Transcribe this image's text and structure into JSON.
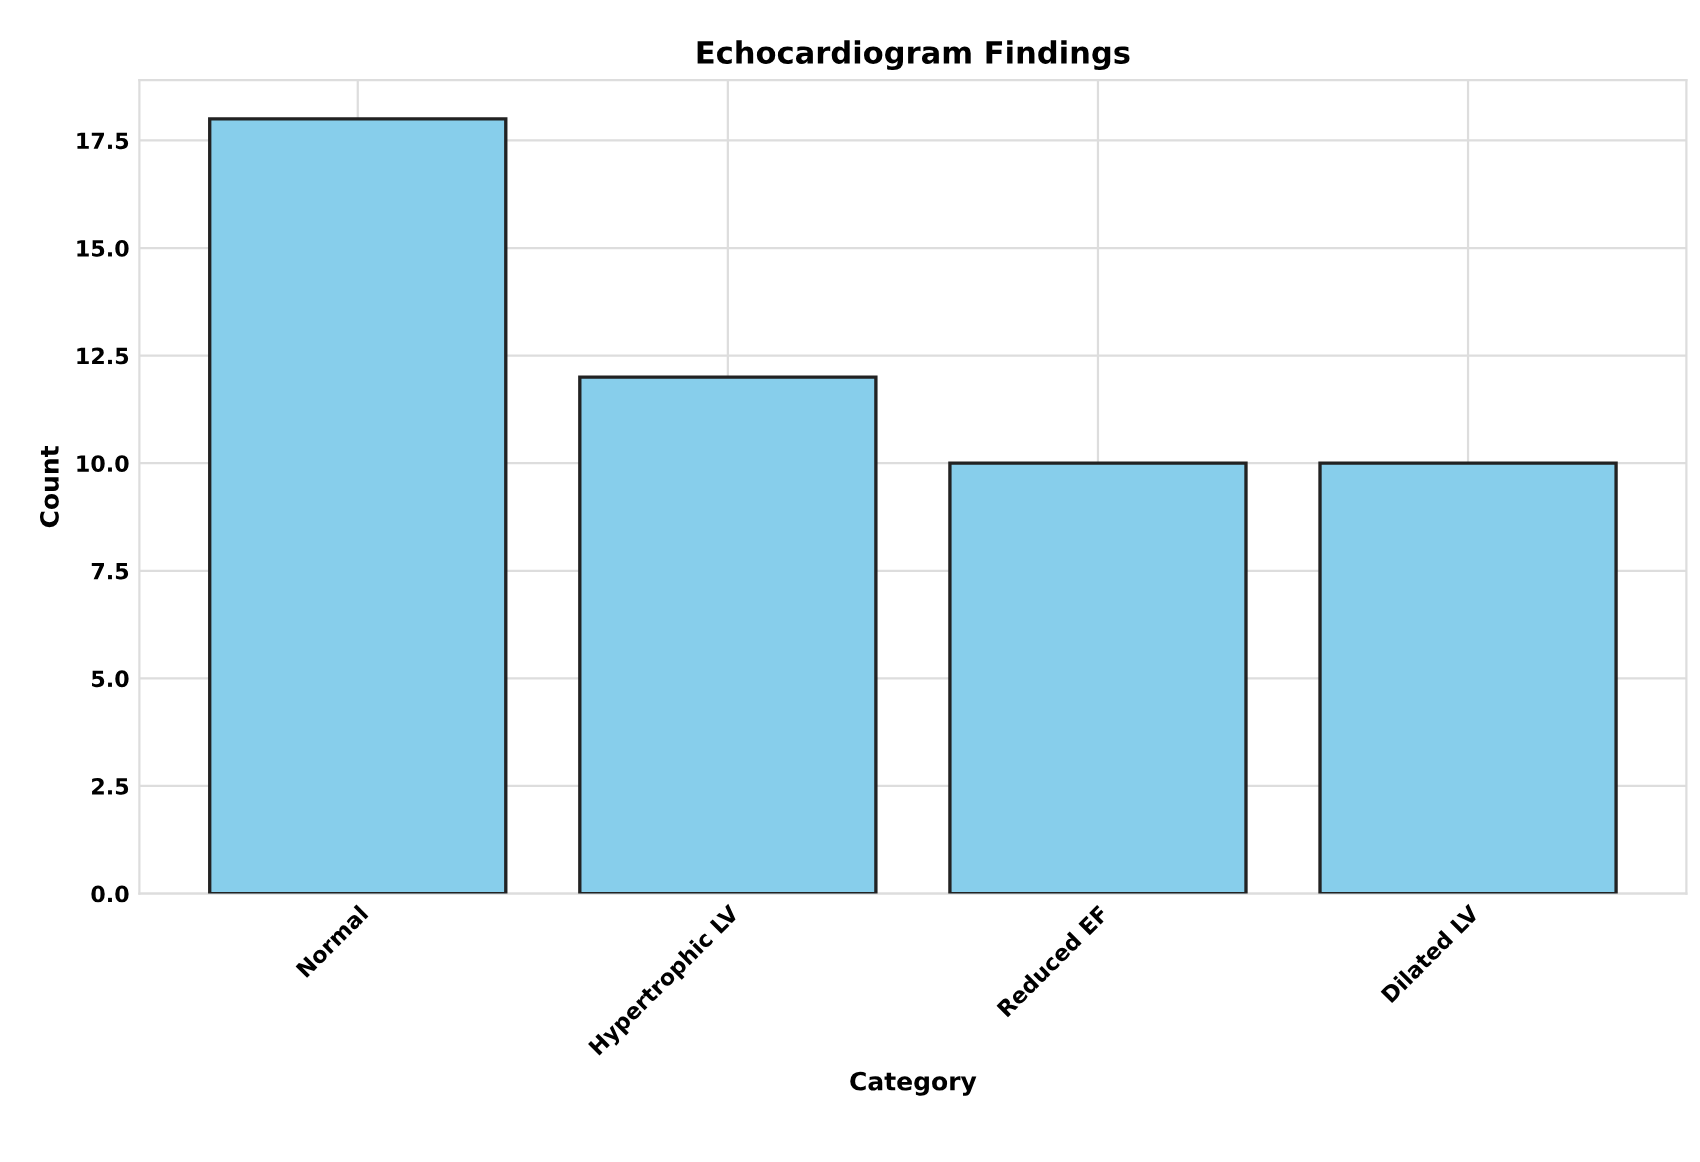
{
  "chart_data": {
    "type": "bar",
    "title": "Echocardiogram Findings",
    "xlabel": "Category",
    "ylabel": "Count",
    "categories": [
      "Normal",
      "Hypertrophic LV",
      "Reduced EF",
      "Dilated LV"
    ],
    "values": [
      18,
      12,
      10,
      10
    ],
    "color": "#87ceeb",
    "ylim": [
      0,
      18.9
    ],
    "yticks": [
      {
        "value": 0,
        "label": "0.0"
      },
      {
        "value": 2.5,
        "label": "2.5"
      },
      {
        "value": 5,
        "label": "5.0"
      },
      {
        "value": 7.5,
        "label": "7.5"
      },
      {
        "value": 10,
        "label": "10.0"
      },
      {
        "value": 12.5,
        "label": "12.5"
      },
      {
        "value": 15,
        "label": "15.0"
      },
      {
        "value": 17.5,
        "label": "17.5"
      }
    ],
    "grid": true
  }
}
